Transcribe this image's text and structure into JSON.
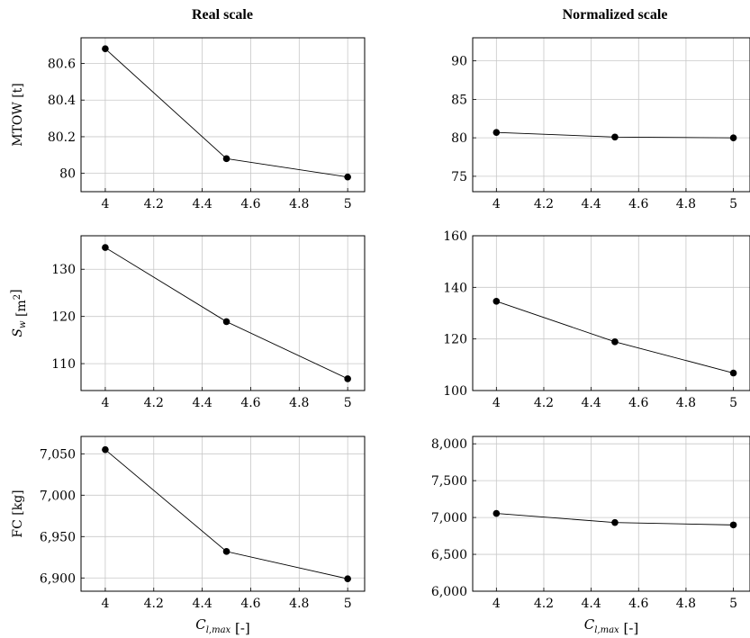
{
  "column_titles": [
    "Real scale",
    "Normalized scale"
  ],
  "chart_data": [
    {
      "type": "line",
      "row": 0,
      "col": 0,
      "ylabel": "MTOW [t]",
      "xlabel": "",
      "x": [
        4,
        4.5,
        5
      ],
      "series": [
        {
          "values": [
            80.68,
            80.08,
            79.98
          ]
        }
      ],
      "xlim": [
        3.9,
        5.07
      ],
      "ylim": [
        79.9,
        80.74
      ],
      "xticks": [
        4,
        4.2,
        4.4,
        4.6,
        4.8,
        5
      ],
      "xtick_labels": [
        "4",
        "4.2",
        "4.4",
        "4.6",
        "4.8",
        "5"
      ],
      "yticks": [
        80,
        80.2,
        80.4,
        80.6
      ],
      "ytick_labels": [
        "80",
        "80.2",
        "80.4",
        "80.6"
      ],
      "grid": true
    },
    {
      "type": "line",
      "row": 0,
      "col": 1,
      "ylabel": "",
      "xlabel": "",
      "x": [
        4,
        4.5,
        5
      ],
      "series": [
        {
          "values": [
            80.7,
            80.1,
            80.0
          ]
        }
      ],
      "xlim": [
        3.9,
        5.07
      ],
      "ylim": [
        73,
        93
      ],
      "xticks": [
        4,
        4.2,
        4.4,
        4.6,
        4.8,
        5
      ],
      "xtick_labels": [
        "4",
        "4.2",
        "4.4",
        "4.6",
        "4.8",
        "5"
      ],
      "yticks": [
        75,
        80,
        85,
        90
      ],
      "ytick_labels": [
        "75",
        "80",
        "85",
        "90"
      ],
      "grid": true
    },
    {
      "type": "line",
      "row": 1,
      "col": 0,
      "ylabel": "S_w [m^2]",
      "xlabel": "",
      "x": [
        4,
        4.5,
        5
      ],
      "series": [
        {
          "values": [
            134.6,
            118.9,
            106.8
          ]
        }
      ],
      "xlim": [
        3.9,
        5.07
      ],
      "ylim": [
        104.3,
        137.1
      ],
      "xticks": [
        4,
        4.2,
        4.4,
        4.6,
        4.8,
        5
      ],
      "xtick_labels": [
        "4",
        "4.2",
        "4.4",
        "4.6",
        "4.8",
        "5"
      ],
      "yticks": [
        110,
        120,
        130
      ],
      "ytick_labels": [
        "110",
        "120",
        "130"
      ],
      "grid": true
    },
    {
      "type": "line",
      "row": 1,
      "col": 1,
      "ylabel": "",
      "xlabel": "",
      "x": [
        4,
        4.5,
        5
      ],
      "series": [
        {
          "values": [
            134.6,
            118.9,
            106.8
          ]
        }
      ],
      "xlim": [
        3.9,
        5.07
      ],
      "ylim": [
        100,
        160
      ],
      "xticks": [
        4,
        4.2,
        4.4,
        4.6,
        4.8,
        5
      ],
      "xtick_labels": [
        "4",
        "4.2",
        "4.4",
        "4.6",
        "4.8",
        "5"
      ],
      "yticks": [
        100,
        120,
        140,
        160
      ],
      "ytick_labels": [
        "100",
        "120",
        "140",
        "160"
      ],
      "grid": true
    },
    {
      "type": "line",
      "row": 2,
      "col": 0,
      "ylabel": "FC [kg]",
      "xlabel": "C_{l,max} [-]",
      "x": [
        4,
        4.5,
        5
      ],
      "series": [
        {
          "values": [
            7055,
            6932,
            6899
          ]
        }
      ],
      "xlim": [
        3.9,
        5.07
      ],
      "ylim": [
        6884,
        7071
      ],
      "xticks": [
        4,
        4.2,
        4.4,
        4.6,
        4.8,
        5
      ],
      "xtick_labels": [
        "4",
        "4.2",
        "4.4",
        "4.6",
        "4.8",
        "5"
      ],
      "yticks": [
        6900,
        6950,
        7000,
        7050
      ],
      "ytick_labels": [
        "6,900",
        "6,950",
        "7,000",
        "7,050"
      ],
      "grid": true
    },
    {
      "type": "line",
      "row": 2,
      "col": 1,
      "ylabel": "",
      "xlabel": "C_{l,max} [-]",
      "x": [
        4,
        4.5,
        5
      ],
      "series": [
        {
          "values": [
            7055,
            6932,
            6899
          ]
        }
      ],
      "xlim": [
        3.9,
        5.07
      ],
      "ylim": [
        6000,
        8100
      ],
      "xticks": [
        4,
        4.2,
        4.4,
        4.6,
        4.8,
        5
      ],
      "xtick_labels": [
        "4",
        "4.2",
        "4.4",
        "4.6",
        "4.8",
        "5"
      ],
      "yticks": [
        6000,
        6500,
        7000,
        7500,
        8000
      ],
      "ytick_labels": [
        "6,000",
        "6,500",
        "7,000",
        "7,500",
        "8,000"
      ],
      "grid": true
    }
  ],
  "colors": {
    "line": "#000000",
    "grid": "#c8c8c8",
    "axes": "#000000"
  }
}
